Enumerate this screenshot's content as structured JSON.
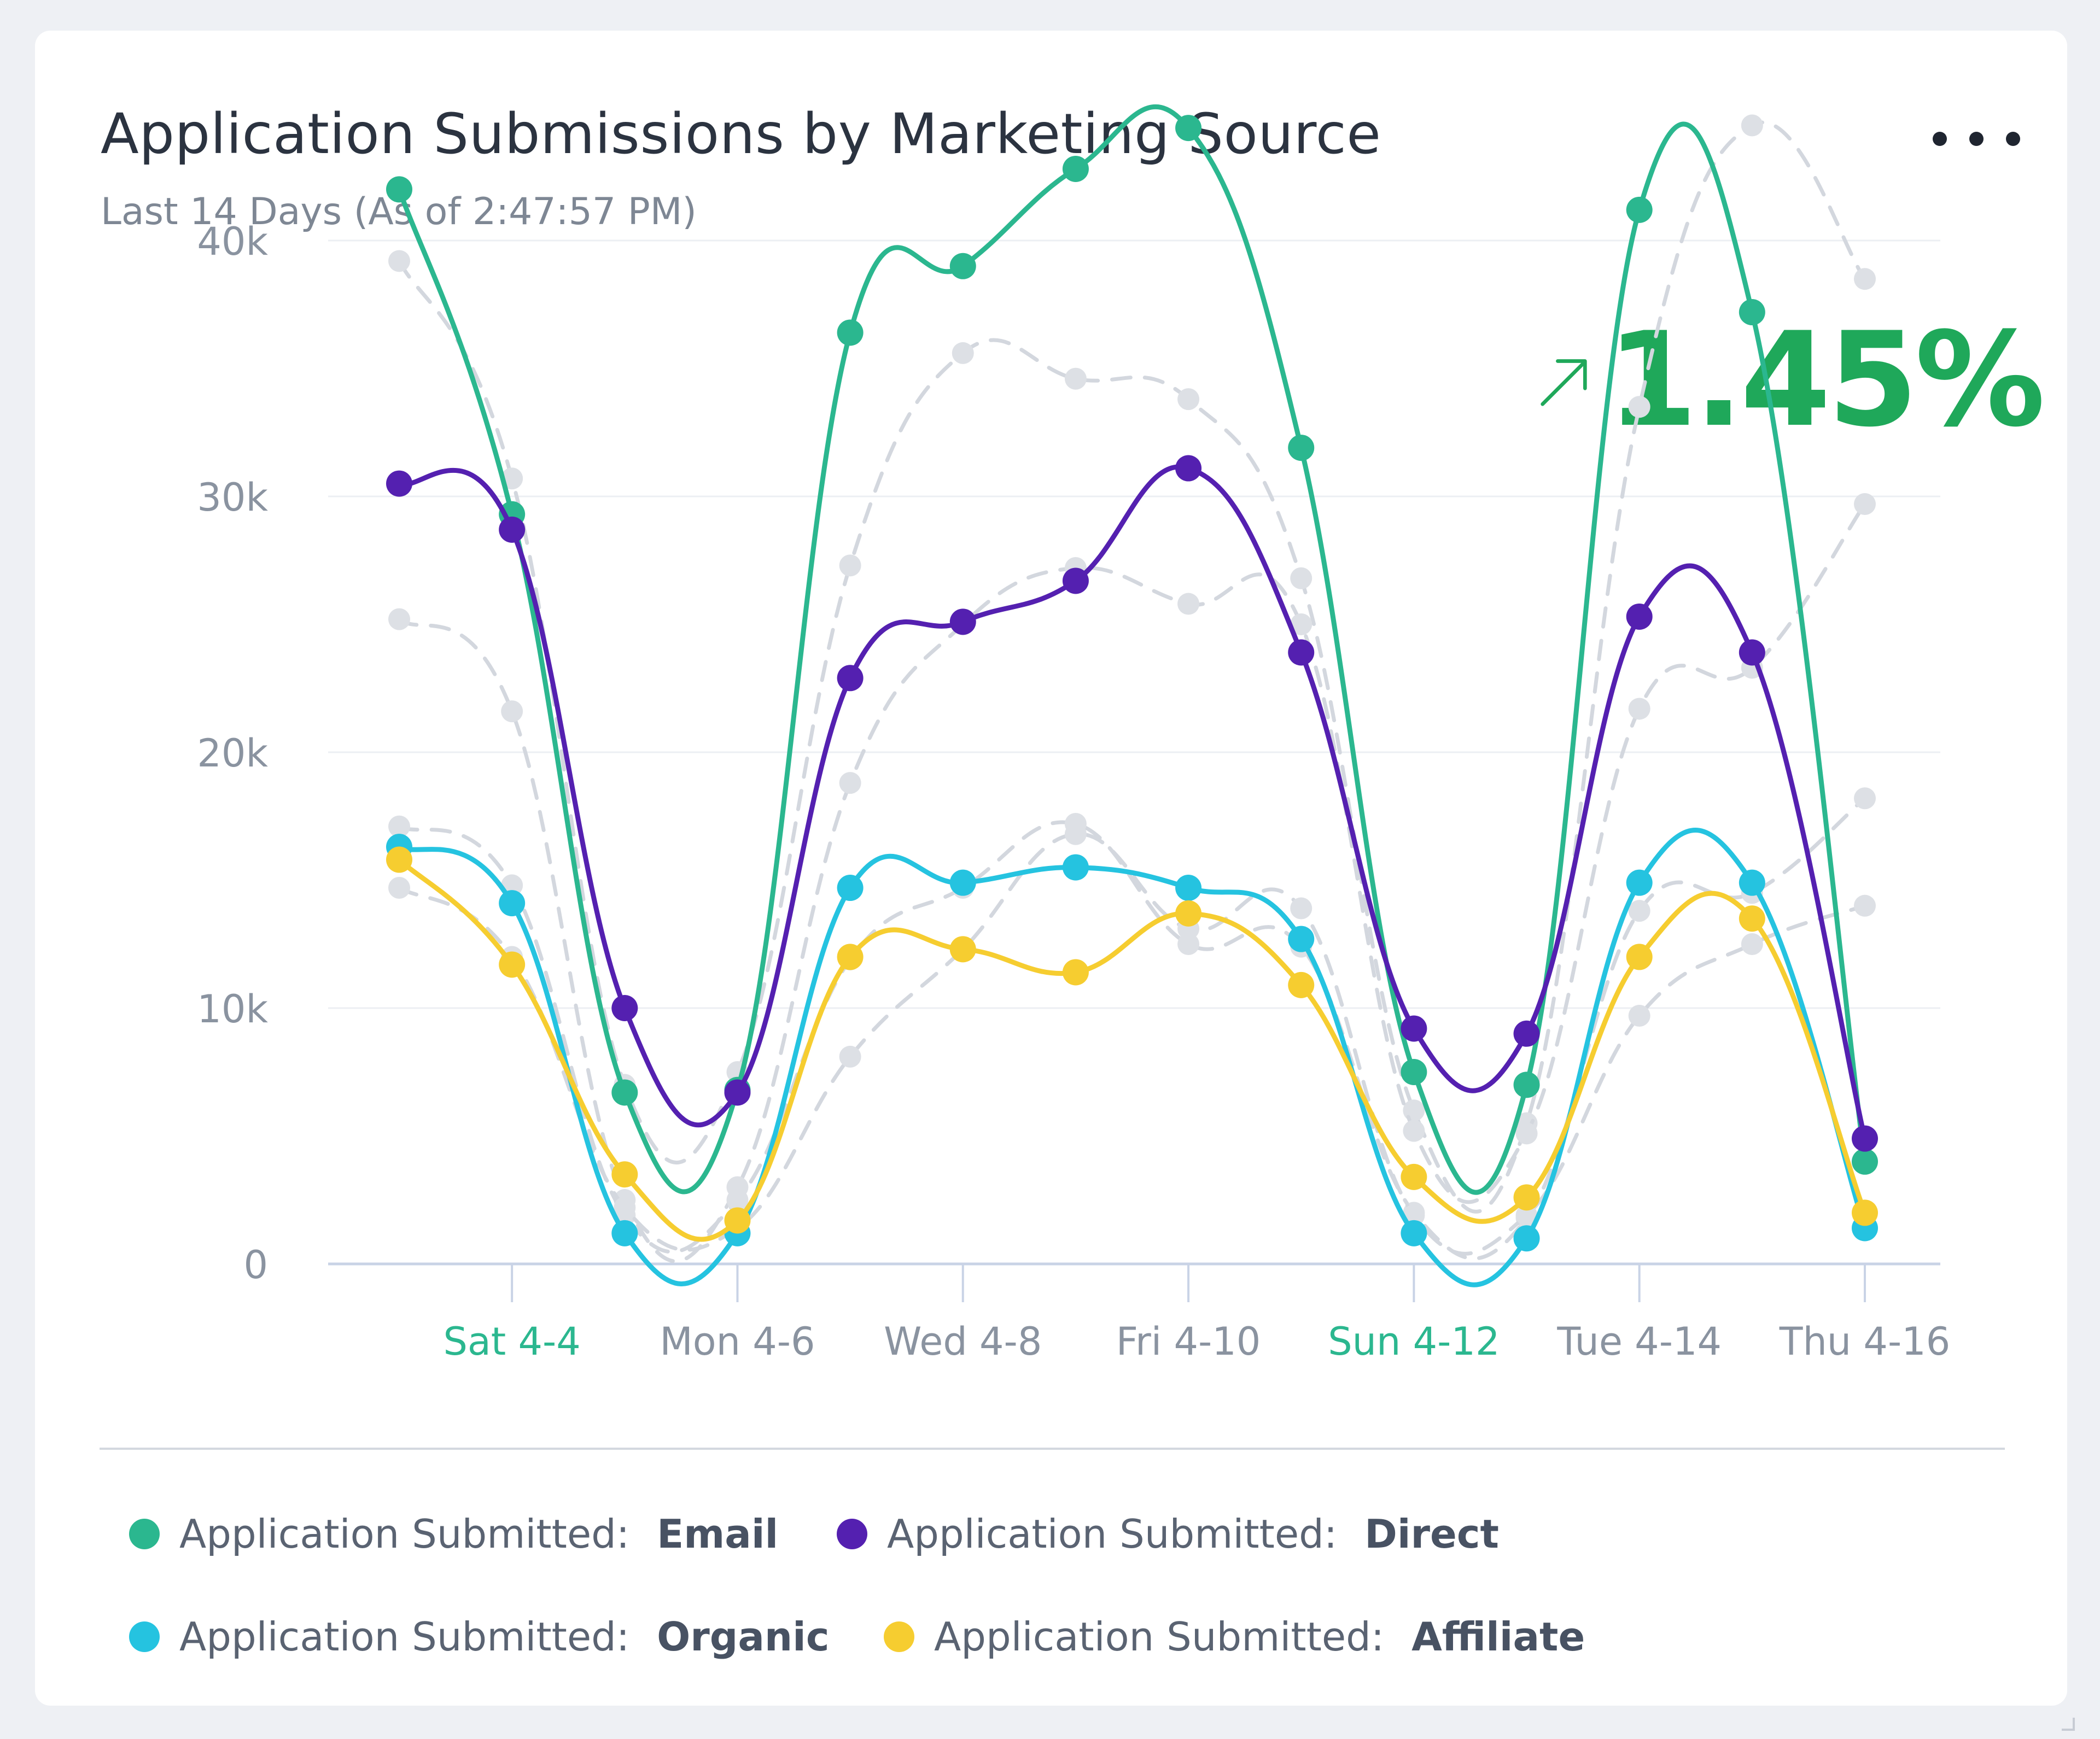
{
  "header": {
    "title": "Application Submissions by Marketing Source",
    "subtitle": "Last 14 Days (As of 2:47:57 PM)",
    "menu_icon": "more-horizontal-icon"
  },
  "kpi": {
    "value": "1.45%",
    "direction_icon": "arrow-up-right-icon",
    "color": "#1fa85a"
  },
  "chart_data": {
    "type": "line",
    "title": "Application Submissions by Marketing Source",
    "subtitle": "Last 14 Days (As of 2:47:57 PM)",
    "x": [
      "Fri 4-3",
      "Sat 4-4",
      "Sun 4-5",
      "Mon 4-6",
      "Tue 4-7",
      "Wed 4-8",
      "Thu 4-9",
      "Fri 4-10",
      "Sat 4-11",
      "Sun 4-12",
      "Mon 4-13",
      "Tue 4-14",
      "Wed 4-15",
      "Thu 4-16"
    ],
    "xtick_labels": [
      "Sat 4-4",
      "Mon 4-6",
      "Wed 4-8",
      "Fri 4-10",
      "Sun 4-12",
      "Tue 4-14",
      "Thu 4-16"
    ],
    "xtick_highlight": [
      "Sat 4-4",
      "Sun 4-12"
    ],
    "ylim": [
      0,
      45000
    ],
    "yticks": [
      0,
      10000,
      20000,
      30000,
      40000
    ],
    "ytick_labels": [
      "0",
      "10k",
      "20k",
      "30k",
      "40k"
    ],
    "grid": true,
    "legend_position": "bottom",
    "series": [
      {
        "name": "Email",
        "label": "Application Submitted:",
        "color": "#2bb78f",
        "values": [
          42000,
          29300,
          6700,
          6800,
          36400,
          39000,
          42800,
          44400,
          31900,
          7500,
          7000,
          41200,
          37200,
          4000
        ]
      },
      {
        "name": "Direct",
        "label": "Application Submitted:",
        "color": "#5420b0",
        "values": [
          30500,
          28700,
          10000,
          6700,
          22900,
          25100,
          26700,
          31100,
          23900,
          9200,
          9000,
          25300,
          23900,
          4900
        ]
      },
      {
        "name": "Organic",
        "label": "Application Submitted:",
        "color": "#25c3e0",
        "values": [
          16300,
          14100,
          1200,
          1200,
          14700,
          14900,
          15500,
          14700,
          12700,
          1200,
          1000,
          14900,
          14900,
          1400
        ]
      },
      {
        "name": "Affiliate",
        "label": "Application Submitted:",
        "color": "#f6cd30",
        "values": [
          15800,
          11700,
          3500,
          1700,
          12000,
          12300,
          11400,
          13700,
          10900,
          3400,
          2600,
          12000,
          13500,
          2000
        ]
      }
    ],
    "comparison_series": [
      {
        "name": "previous-period-1",
        "values": [
          39200,
          30700,
          7000,
          7500,
          27300,
          35600,
          34600,
          33800,
          26800,
          6000,
          5500,
          33500,
          44500,
          38500
        ]
      },
      {
        "name": "previous-period-2",
        "values": [
          25200,
          21600,
          2500,
          3000,
          18800,
          25000,
          27200,
          25800,
          25000,
          5200,
          5100,
          21700,
          23300,
          29700
        ]
      },
      {
        "name": "previous-period-3",
        "values": [
          17100,
          14800,
          1900,
          2500,
          11900,
          14700,
          17200,
          12500,
          12400,
          2000,
          1800,
          13800,
          14500,
          18200
        ]
      },
      {
        "name": "previous-period-4",
        "values": [
          14700,
          12000,
          2200,
          1400,
          8100,
          12300,
          16800,
          13100,
          13900,
          1900,
          1900,
          9700,
          12500,
          14000
        ]
      }
    ],
    "comparison_color": "#d3d7de"
  },
  "legend": {
    "items": [
      {
        "prefix": "Application Submitted:",
        "name": "Email",
        "color": "#2bb78f"
      },
      {
        "prefix": "Application Submitted:",
        "name": "Direct",
        "color": "#5420b0"
      },
      {
        "prefix": "Application Submitted:",
        "name": "Organic",
        "color": "#25c3e0"
      },
      {
        "prefix": "Application Submitted:",
        "name": "Affiliate",
        "color": "#f6cd30"
      }
    ]
  }
}
